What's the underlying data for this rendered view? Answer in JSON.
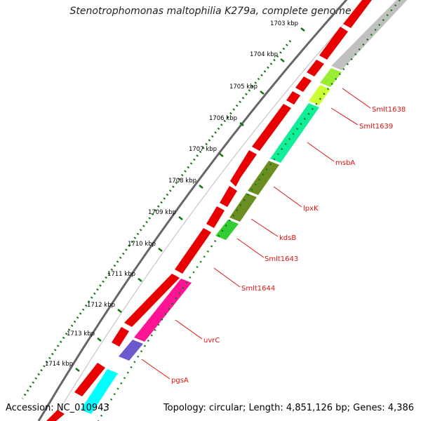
{
  "header": {
    "title": "Stenotrophomonas maltophilia K279a, complete genome"
  },
  "footer": {
    "accession": "Accession: NC_010943",
    "summary": "Topology: circular; Length: 4,851,126 bp; Genes: 4,386"
  },
  "ruler": {
    "tick_labels": [
      "1703 kbp",
      "1704 kbp",
      "1705 kbp",
      "1706 kbp",
      "1707 kbp",
      "1708 kbp",
      "1709 kbp",
      "1710 kbp",
      "1711 kbp",
      "1712 kbp",
      "1713 kbp",
      "1714 kbp"
    ]
  },
  "genes": [
    {
      "name": "Smlt1638",
      "color": "#99ee33"
    },
    {
      "name": "Smlt1639",
      "color": "#ccff33"
    },
    {
      "name": "msbA",
      "color": "#11ee99"
    },
    {
      "name": "lpxK",
      "color": "#6b8e23"
    },
    {
      "name": "kdsB",
      "color": "#6b8e23"
    },
    {
      "name": "Smlt1643",
      "color": "#33dd33"
    },
    {
      "name": "Smlt1644",
      "color": "#ee0000"
    },
    {
      "name": "uvrC",
      "color": "#ff1493"
    },
    {
      "name": "pgsA",
      "color": "#6a5acd"
    }
  ],
  "colors": {
    "forward_strand": "#ee0000",
    "backbone": "#777777",
    "tick": "#117711",
    "gray_feature": "#c0c0c0",
    "cyan_feature": "#00ffff"
  }
}
